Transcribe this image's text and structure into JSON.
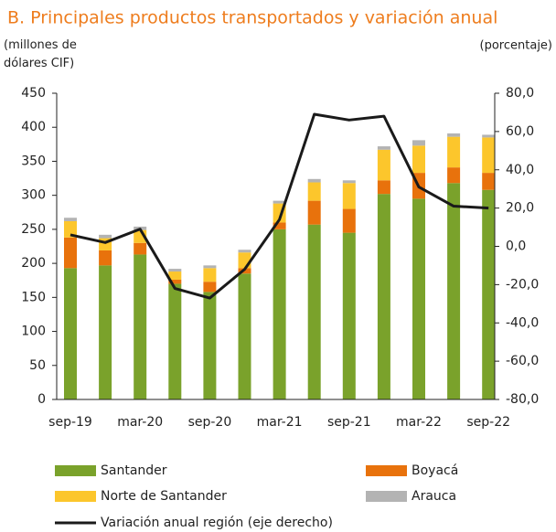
{
  "chart_data": {
    "type": "bar",
    "stacked": true,
    "title": "B. Principales productos transportados y variación anual",
    "y_label": "(millones de dólares CIF)",
    "y2_label": "(porcentaje)",
    "categories": [
      "sep-19",
      null,
      "mar-20",
      null,
      "sep-20",
      null,
      "mar-21",
      null,
      "sep-21",
      null,
      "mar-22",
      null,
      "sep-22"
    ],
    "series": [
      {
        "name": "Santander",
        "color": "#7aa22b",
        "values": [
          193,
          197,
          213,
          170,
          158,
          185,
          250,
          257,
          245,
          302,
          295,
          318,
          308
        ]
      },
      {
        "name": "Boyacá",
        "color": "#e8720c",
        "values": [
          45,
          22,
          17,
          6,
          15,
          8,
          10,
          35,
          35,
          20,
          38,
          23,
          25
        ]
      },
      {
        "name": "Norte de Santander",
        "color": "#fcc62c",
        "values": [
          24,
          18,
          19,
          12,
          20,
          23,
          28,
          27,
          38,
          45,
          40,
          45,
          52
        ]
      },
      {
        "name": "Arauca",
        "color": "#b3b3b3",
        "values": [
          5,
          5,
          5,
          4,
          4,
          4,
          4,
          5,
          4,
          5,
          8,
          5,
          4
        ]
      },
      {
        "name": "Variación anual región (eje derecho)",
        "color": "#1a1a1a",
        "type": "line",
        "axis": "y2",
        "values": [
          6,
          2,
          9,
          -22,
          -27,
          -12,
          14,
          69,
          66,
          68,
          31,
          21,
          20
        ]
      }
    ],
    "ylim": [
      0,
      450
    ],
    "yticks": [
      0,
      50,
      100,
      150,
      200,
      250,
      300,
      350,
      400,
      450
    ],
    "y2lim": [
      -80,
      80
    ],
    "y2ticks": [
      {
        "value": -80,
        "label": "-80,0"
      },
      {
        "value": -60,
        "label": "-60,0"
      },
      {
        "value": -40,
        "label": "-40,0"
      },
      {
        "value": -20,
        "label": "-20,0"
      },
      {
        "value": 0,
        "label": "0,0"
      },
      {
        "value": 20,
        "label": "20,0"
      },
      {
        "value": 40,
        "label": "40,0"
      },
      {
        "value": 60,
        "label": "60,0"
      },
      {
        "value": 80,
        "label": "80,0"
      }
    ]
  }
}
